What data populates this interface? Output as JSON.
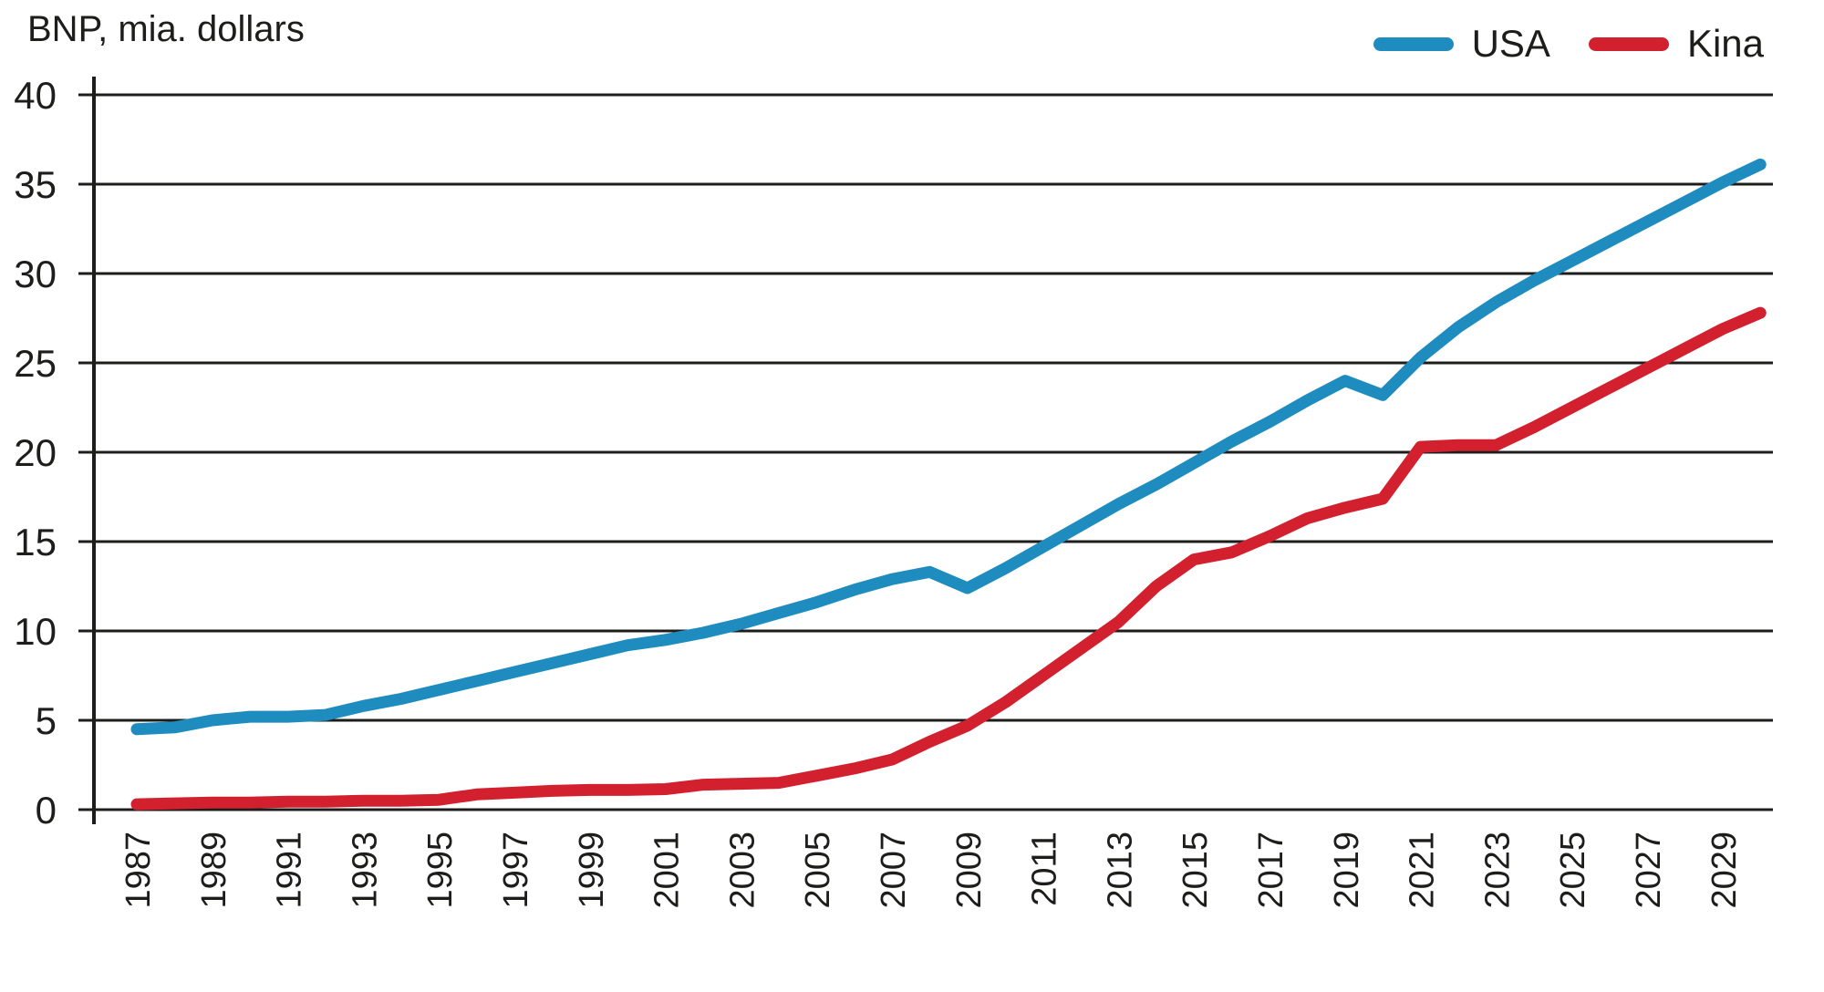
{
  "title": "BNP, mia. dollars",
  "legend": {
    "items": [
      {
        "label": "USA",
        "color": "#1E8CBE"
      },
      {
        "label": "Kina",
        "color": "#D2202F"
      }
    ]
  },
  "colors": {
    "usa_line": "#1E8CBE",
    "kina_line": "#D2202F",
    "grid": "#1d1d1b",
    "text": "#1d1d1b",
    "background": "#ffffff"
  },
  "chart_data": {
    "type": "line",
    "title": "BNP, mia. dollars",
    "ylabel": "BNP, mia. dollars",
    "xlabel": "",
    "ylim": [
      0,
      40
    ],
    "yticks": [
      0,
      5,
      10,
      15,
      20,
      25,
      30,
      35,
      40
    ],
    "grid": "horizontal",
    "legend_position": "top-right",
    "x": [
      1987,
      1988,
      1989,
      1990,
      1991,
      1992,
      1993,
      1994,
      1995,
      1996,
      1997,
      1998,
      1999,
      2000,
      2001,
      2002,
      2003,
      2004,
      2005,
      2006,
      2007,
      2008,
      2009,
      2010,
      2011,
      2012,
      2013,
      2014,
      2015,
      2016,
      2017,
      2018,
      2019,
      2020,
      2021,
      2022,
      2023,
      2024,
      2025,
      2026,
      2027,
      2028,
      2029,
      2030
    ],
    "xtick_labels": [
      "1987",
      "1989",
      "1991",
      "1993",
      "1995",
      "1997",
      "1999",
      "2001",
      "2003",
      "2005",
      "2007",
      "2009",
      "2011",
      "2013",
      "2015",
      "2017",
      "2019",
      "2021",
      "2023",
      "2025",
      "2027",
      "2029"
    ],
    "series": [
      {
        "name": "USA",
        "color": "#1E8CBE",
        "values": [
          4.5,
          4.6,
          5.0,
          5.2,
          5.2,
          5.3,
          5.8,
          6.2,
          6.7,
          7.2,
          7.7,
          8.2,
          8.7,
          9.2,
          9.5,
          9.9,
          10.4,
          11.0,
          11.6,
          12.3,
          12.9,
          13.3,
          12.4,
          13.5,
          14.7,
          15.9,
          17.1,
          18.2,
          19.4,
          20.6,
          21.7,
          22.9,
          24.0,
          23.2,
          25.3,
          27.0,
          28.4,
          29.6,
          30.7,
          31.8,
          32.9,
          34.0,
          35.1,
          36.1
        ]
      },
      {
        "name": "Kina",
        "color": "#D2202F",
        "values": [
          0.3,
          0.35,
          0.4,
          0.4,
          0.45,
          0.45,
          0.5,
          0.5,
          0.55,
          0.85,
          0.95,
          1.05,
          1.1,
          1.1,
          1.15,
          1.4,
          1.45,
          1.5,
          1.9,
          2.3,
          2.8,
          3.8,
          4.7,
          6.0,
          7.5,
          9.0,
          10.5,
          12.5,
          14.0,
          14.4,
          15.3,
          16.3,
          16.9,
          17.4,
          20.3,
          20.4,
          20.4,
          21.4,
          22.5,
          23.6,
          24.7,
          25.8,
          26.9,
          27.8
        ]
      }
    ]
  }
}
